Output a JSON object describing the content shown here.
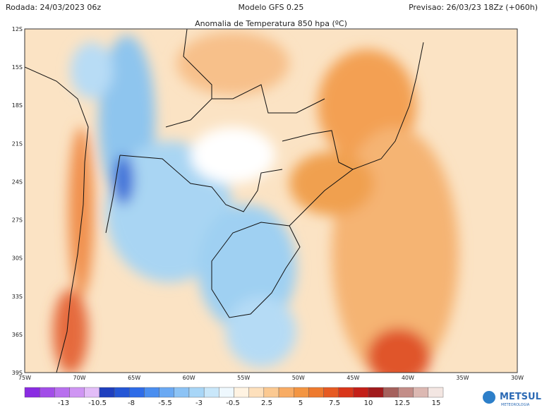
{
  "header": {
    "run": "Rodada: 24/03/2023 06z",
    "model": "Modelo GFS 0.25",
    "forecast": "Previsao: 26/03/23 18Zz (+060h)",
    "title": "Anomalia de Temperatura 850 hpa (ºC)"
  },
  "map": {
    "lat_labels": [
      "12S",
      "15S",
      "18S",
      "21S",
      "24S",
      "27S",
      "30S",
      "33S",
      "36S",
      "39S"
    ],
    "lon_labels": [
      "75W",
      "70W",
      "65W",
      "60W",
      "55W",
      "50W",
      "45W",
      "40W",
      "35W",
      "30W"
    ]
  },
  "colorbar": {
    "labels": [
      "-13",
      "-10.5",
      "-8",
      "-5.5",
      "-3",
      "-0.5",
      "2.5",
      "5",
      "7.5",
      "10",
      "12.5",
      "15"
    ]
  },
  "logo": {
    "name": "METSUL",
    "tagline": "METEOROLOGIA"
  }
}
